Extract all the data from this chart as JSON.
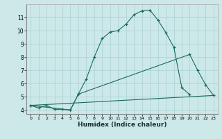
{
  "xlabel": "Humidex (Indice chaleur)",
  "ylabel": "",
  "bg_color": "#cce8e8",
  "grid_color": "#aad0d0",
  "line_color": "#1a6b5a",
  "xlim": [
    -0.5,
    23.5
  ],
  "ylim": [
    3.7,
    12.0
  ],
  "xticks": [
    0,
    1,
    2,
    3,
    4,
    5,
    6,
    7,
    8,
    9,
    10,
    11,
    12,
    13,
    14,
    15,
    16,
    17,
    18,
    19,
    20,
    21,
    22,
    23
  ],
  "yticks": [
    4,
    5,
    6,
    7,
    8,
    9,
    10,
    11
  ],
  "curve1_x": [
    0,
    1,
    2,
    3,
    4,
    5,
    6,
    7,
    8,
    9,
    10,
    11,
    12,
    13,
    14,
    15,
    16,
    17,
    18,
    19,
    20
  ],
  "curve1_y": [
    4.35,
    4.15,
    4.35,
    4.05,
    4.05,
    4.0,
    5.2,
    6.35,
    8.0,
    9.4,
    9.9,
    10.0,
    10.5,
    11.2,
    11.5,
    11.55,
    10.8,
    9.85,
    8.75,
    5.7,
    5.15
  ],
  "curve2_x": [
    0,
    5,
    6,
    20,
    21,
    22,
    23
  ],
  "curve2_y": [
    4.35,
    4.0,
    5.2,
    8.2,
    7.0,
    5.9,
    5.1
  ],
  "curve3_x": [
    0,
    23
  ],
  "curve3_y": [
    4.35,
    5.1
  ]
}
